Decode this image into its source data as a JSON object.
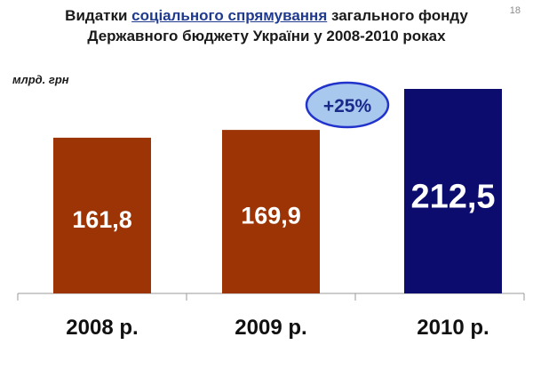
{
  "page": {
    "slide_number": "18",
    "title_part1": "Видатки ",
    "title_highlight": "соціального спрямування",
    "title_part2": " загального фонду",
    "title_line2": "Державного бюджету України у 2008-2010 роках",
    "unit_label": "млрд. грн"
  },
  "chart_data": {
    "type": "bar",
    "title": "Видатки соціального спрямування загального фонду Державного бюджету України у 2008-2010 роках",
    "ylabel": "млрд. грн",
    "xlabel": "",
    "categories": [
      "2008 р.",
      "2009 р.",
      "2010 р."
    ],
    "values": [
      161.8,
      169.9,
      212.5
    ],
    "value_labels": [
      "161,8",
      "169,9",
      "212,5"
    ],
    "bar_colors": [
      "#9c3406",
      "#9c3406",
      "#0c0c6e"
    ],
    "ylim": [
      0,
      230
    ],
    "grid": false,
    "annotation": {
      "text": "+25%",
      "fill": "#a9c8ee",
      "stroke": "#2233cc",
      "text_color": "#1a2a8c"
    }
  }
}
